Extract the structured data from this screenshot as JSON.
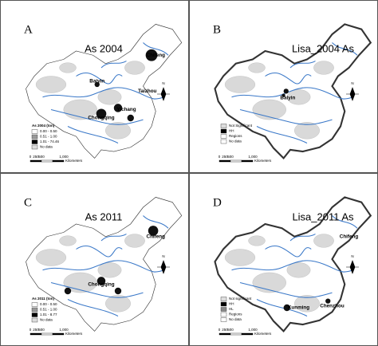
{
  "panels": [
    {
      "letter": "A",
      "title": "As 2004",
      "cities": [
        "Chifeng",
        "Baiyin",
        "Taizhou",
        "Chongqing",
        "Yichang"
      ],
      "legend": {
        "title": "As 2004 (ton)",
        "items": [
          {
            "label": "0.00 - 0.50",
            "color": "#ffffff"
          },
          {
            "label": "0.51 - 1.00",
            "color": "#999999"
          },
          {
            "label": "1.01 - 74.46",
            "color": "#000000"
          },
          {
            "label": "No data",
            "color": "#dddddd"
          }
        ]
      },
      "scale": {
        "ticks": [
          "0",
          "250",
          "500",
          "1,000"
        ],
        "unit": "Kilometers"
      },
      "north": "N"
    },
    {
      "letter": "B",
      "title": "Lisa_2004 As",
      "cities": [
        "Baiyin"
      ],
      "legend": {
        "items": [
          {
            "label": "Not Significant",
            "color": "#dddddd"
          },
          {
            "label": "HH",
            "color": "#000000"
          },
          {
            "label": "Regions",
            "color": "#ffffff"
          },
          {
            "label": "No data",
            "color": "#ffffff"
          }
        ]
      },
      "scale": {
        "ticks": [
          "0",
          "250",
          "500",
          "1,000"
        ],
        "unit": "Kilometers"
      },
      "north": "N"
    },
    {
      "letter": "C",
      "title": "As 2011",
      "cities": [
        "Chifeng",
        "Chongqing"
      ],
      "legend": {
        "title": "As 2011 (ton)",
        "items": [
          {
            "label": "0.00 - 0.50",
            "color": "#ffffff"
          },
          {
            "label": "0.51 - 1.00",
            "color": "#999999"
          },
          {
            "label": "1.01 - 8.77",
            "color": "#000000"
          },
          {
            "label": "No data",
            "color": "#dddddd"
          }
        ]
      },
      "scale": {
        "ticks": [
          "0",
          "250",
          "500",
          "1,000"
        ],
        "unit": "Kilometers"
      },
      "north": "N"
    },
    {
      "letter": "D",
      "title": "Lisa_2011 As",
      "cities": [
        "Chifeng",
        "Kunming",
        "Chenzhou"
      ],
      "legend": {
        "items": [
          {
            "label": "Not significant",
            "color": "#dddddd"
          },
          {
            "label": "HH",
            "color": "#000000"
          },
          {
            "label": "HL",
            "color": "#888888"
          },
          {
            "label": "Regions",
            "color": "#ffffff"
          },
          {
            "label": "No data",
            "color": "#ffffff"
          }
        ]
      },
      "scale": {
        "ticks": [
          "0",
          "250",
          "500",
          "1,000"
        ],
        "unit": "Kilometers"
      },
      "north": "N"
    }
  ]
}
